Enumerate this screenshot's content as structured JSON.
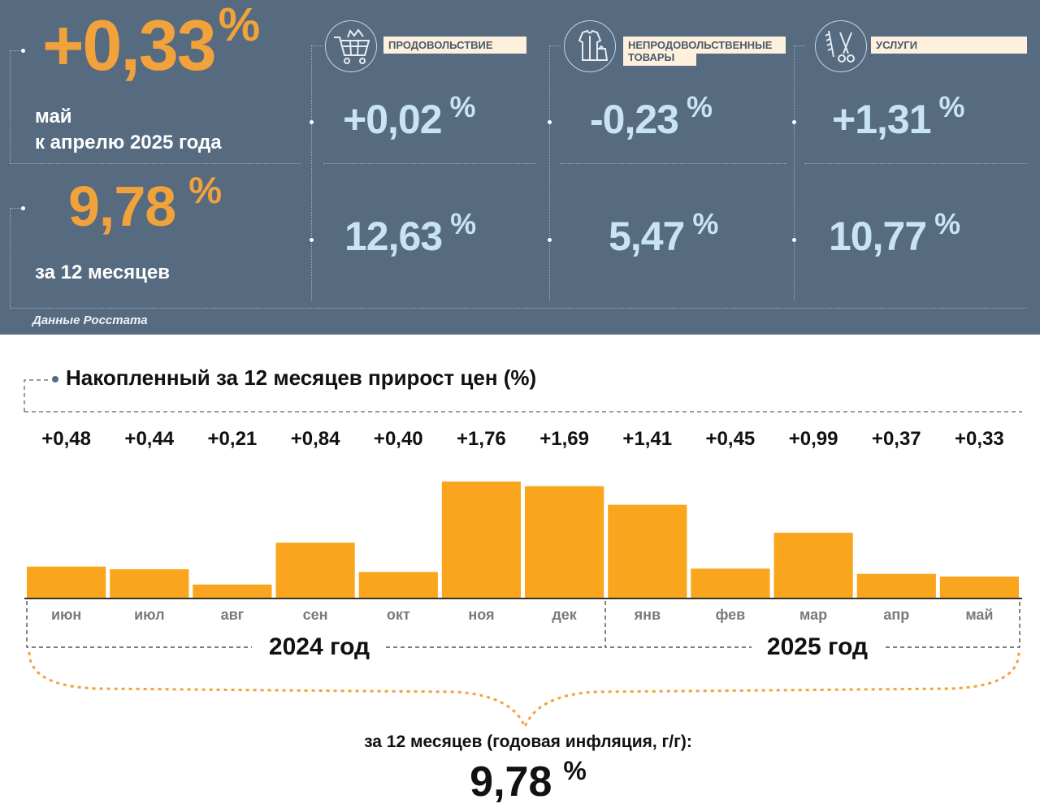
{
  "header": {
    "monthly_value": "+0,33",
    "monthly_unit": "%",
    "monthly_line1": "май",
    "monthly_line2": "к апрелю 2025 года",
    "annual_value": "9,78",
    "annual_unit": "%",
    "annual_caption": "за 12 месяцев",
    "source": "Данные Росстата"
  },
  "categories": [
    {
      "label": "ПРОДОВОЛЬСТВИЕ",
      "icon": "shopping-cart-icon",
      "monthly": "+0,02",
      "annual": "12,63",
      "unit": "%"
    },
    {
      "label_line1": "НЕПРОДОВОЛЬСТВЕННЫЕ",
      "label_line2": "ТОВАРЫ",
      "icon": "clothing-icon",
      "monthly": "-0,23",
      "annual": "5,47",
      "unit": "%"
    },
    {
      "label": "УСЛУГИ",
      "icon": "scissors-comb-icon",
      "monthly": "+1,31",
      "annual": "10,77",
      "unit": "%"
    }
  ],
  "chart": {
    "title": "Накопленный за 12 месяцев прирост цен (%)",
    "year1": "2024 год",
    "year2": "2025 год",
    "summary_caption": "за 12 месяцев (годовая инфляция, г/г):",
    "summary_value": "9,78",
    "summary_unit": "%"
  },
  "chart_data": {
    "type": "bar",
    "title": "Накопленный за 12 месяцев прирост цен (%)",
    "categories": [
      "июн",
      "июл",
      "авг",
      "сен",
      "окт",
      "ноя",
      "дек",
      "янв",
      "фев",
      "мар",
      "апр",
      "май"
    ],
    "values": [
      0.48,
      0.44,
      0.21,
      0.84,
      0.4,
      1.76,
      1.69,
      1.41,
      0.45,
      0.99,
      0.37,
      0.33
    ],
    "labels": [
      "+0,48",
      "+0,44",
      "+0,21",
      "+0,84",
      "+0,40",
      "+1,76",
      "+1,69",
      "+1,41",
      "+0,45",
      "+0,99",
      "+0,37",
      "+0,33"
    ],
    "groups": [
      {
        "name": "2024 год",
        "from": 0,
        "to": 6
      },
      {
        "name": "2025 год",
        "from": 7,
        "to": 11
      }
    ],
    "colors": {
      "bar": "#f9a51e",
      "panel": "#566a80",
      "accent": "#f2a23a",
      "value": "#c8e4f4"
    }
  }
}
